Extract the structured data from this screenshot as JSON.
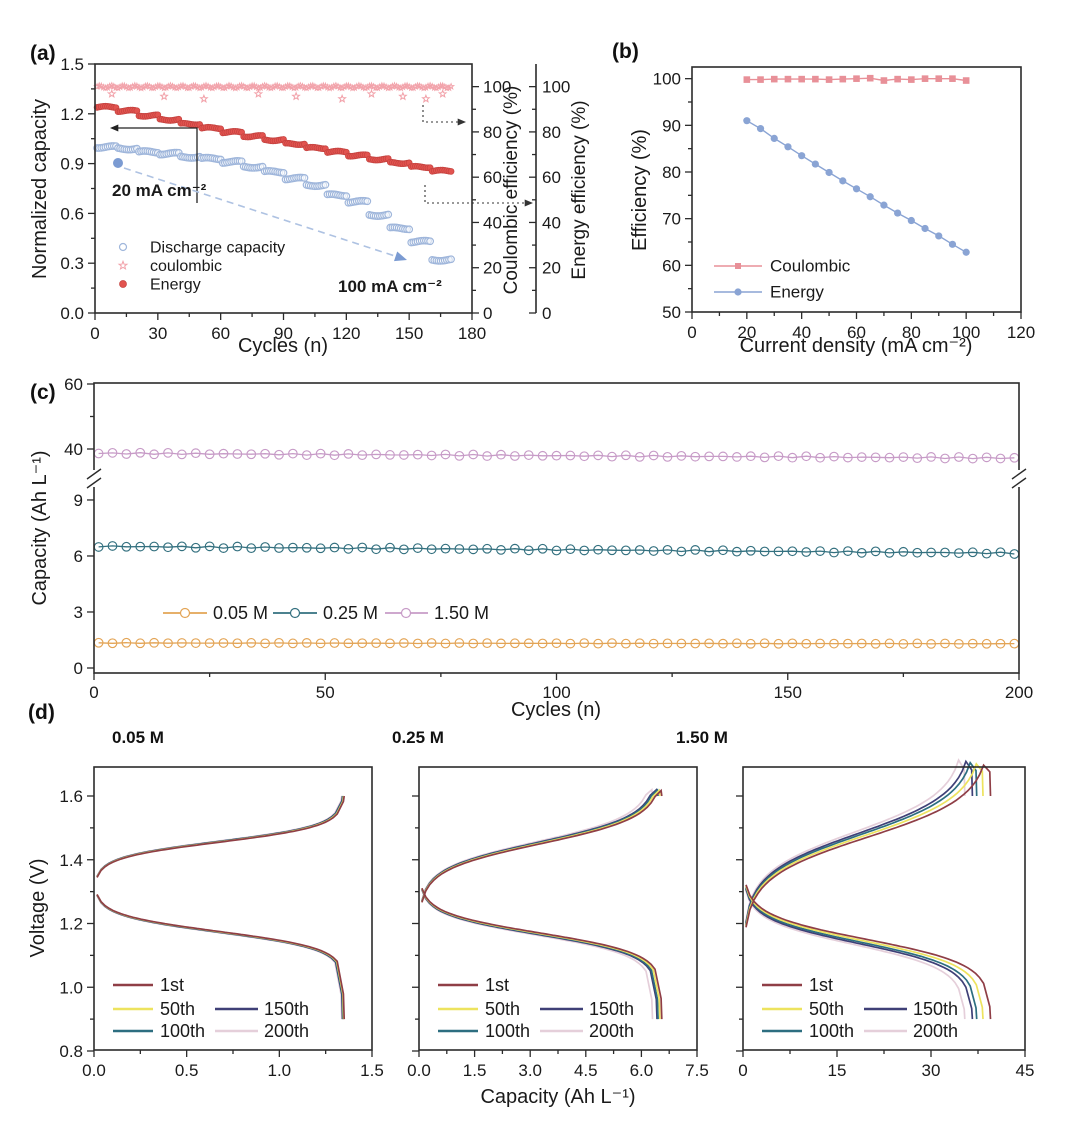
{
  "ui": {
    "panel_letters": {
      "a": "(a)",
      "b": "(b)",
      "c": "(c)",
      "d": "(d)"
    },
    "d_titles": [
      "0.05 M",
      "0.25 M",
      "1.50 M"
    ],
    "text_color": "#1a1a1a",
    "spine_color": "#2b2b2b"
  },
  "chart_data": [
    {
      "id": "a",
      "type": "scatter",
      "xlabel": "Cycles (n)",
      "ylabel": "Normalized capacity",
      "y2label": "Coulombic efficiency (%)",
      "y3label": "Energy efficiency (%)",
      "xlim": [
        0,
        180
      ],
      "ylim": [
        0,
        1.5
      ],
      "y2lim": [
        0,
        110
      ],
      "xticks": [
        "0",
        "30",
        "60",
        "90",
        "120",
        "150",
        "180"
      ],
      "yticks": [
        "0.0",
        "0.3",
        "0.6",
        "0.9",
        "1.2",
        "1.5"
      ],
      "y2ticks": [
        "0",
        "20",
        "40",
        "60",
        "80",
        "100"
      ],
      "legend": [
        {
          "label": "Discharge capacity",
          "marker": "open-circle",
          "color": "#9FB6DB"
        },
        {
          "label": "coulombic",
          "marker": "open-star",
          "color": "#F2A2AA"
        },
        {
          "label": "Energy",
          "marker": "filled-circle",
          "color": "#E2534F"
        }
      ],
      "annotations": {
        "start": "20 mA cm⁻²",
        "end": "100 mA cm⁻²"
      },
      "cycles_per_step": 10,
      "total_cycles": 170,
      "discharge_capacity_steps": [
        1.0,
        0.99,
        0.97,
        0.96,
        0.94,
        0.93,
        0.91,
        0.88,
        0.85,
        0.81,
        0.77,
        0.71,
        0.67,
        0.59,
        0.51,
        0.43,
        0.32
      ],
      "energy_efficiency_steps": [
        91.0,
        89.3,
        87.2,
        85.4,
        83.5,
        81.7,
        79.9,
        78.1,
        76.4,
        74.7,
        72.9,
        71.2,
        69.6,
        67.9,
        66.3,
        64.5,
        62.8
      ],
      "coulombic_efficiency_avg": 99.9,
      "coulombic_outlier_cycles": [
        8,
        33,
        52,
        78,
        96,
        118,
        132,
        147,
        158,
        166
      ],
      "colors": {
        "discharge": "#9FB6DB",
        "coulombic": "#F2A2AA",
        "energy": "#E2534F",
        "energy_edge": "#C4423F",
        "arrow_blue": "#7B9BD2",
        "dash_blue": "#AEC2E2"
      }
    },
    {
      "id": "b",
      "type": "line",
      "xlabel": "Current density (mA cm⁻²)",
      "ylabel": "Efficiency (%)",
      "xlim": [
        0,
        120
      ],
      "ylim": [
        50,
        102.5
      ],
      "xticks": [
        "0",
        "20",
        "40",
        "60",
        "80",
        "100",
        "120"
      ],
      "yticks": [
        "50",
        "60",
        "70",
        "80",
        "90",
        "100"
      ],
      "x": [
        20,
        25,
        30,
        35,
        40,
        45,
        50,
        55,
        60,
        65,
        70,
        75,
        80,
        85,
        90,
        95,
        100
      ],
      "series": [
        {
          "name": "Coulombic",
          "color": "#E89098",
          "marker": "square",
          "values": [
            99.8,
            99.8,
            99.9,
            99.9,
            99.9,
            99.9,
            99.8,
            99.9,
            100.0,
            100.1,
            99.6,
            99.9,
            99.8,
            100.0,
            100.0,
            100.0,
            99.6
          ]
        },
        {
          "name": "Energy",
          "color": "#8AA4D4",
          "marker": "circle",
          "values": [
            91.0,
            89.3,
            87.2,
            85.4,
            83.5,
            81.7,
            79.9,
            78.1,
            76.4,
            74.7,
            72.9,
            71.2,
            69.6,
            67.9,
            66.3,
            64.5,
            62.8
          ]
        }
      ]
    },
    {
      "id": "c",
      "type": "line-scatter",
      "broken_y_axis": true,
      "xlabel": "Cycles (n)",
      "ylabel": "Capacity (Ah L⁻¹)",
      "xlim": [
        0,
        200
      ],
      "xticks": [
        "0",
        "50",
        "100",
        "150",
        "200"
      ],
      "yticks_lower": [
        "0",
        "3",
        "6",
        "9"
      ],
      "yticks_upper": [
        "40",
        "60"
      ],
      "marker_every": 3,
      "series": [
        {
          "name": "0.05 M",
          "color": "#E3A455",
          "start": 1.34,
          "end": 1.3
        },
        {
          "name": "0.25 M",
          "color": "#33707F",
          "start": 6.52,
          "end": 6.15
        },
        {
          "name": "1.50 M",
          "color": "#C79BC7",
          "start": 38.7,
          "end": 37.2
        }
      ]
    },
    {
      "id": "d",
      "type": "line",
      "xlabel": "Capacity (Ah L⁻¹)",
      "ylabel": "Voltage (V)",
      "ylim": [
        0.8,
        1.695
      ],
      "yticks": [
        "0.8",
        "1.0",
        "1.2",
        "1.4",
        "1.6"
      ],
      "voltage_range": [
        0.9,
        1.6
      ],
      "cycle_labels": [
        "1st",
        "50th",
        "100th",
        "150th",
        "200th"
      ],
      "cycle_colors": [
        "#8F3E46",
        "#EDE35E",
        "#2D6E80",
        "#3F4077",
        "#E5CFDA"
      ],
      "subpanels": [
        {
          "title": "0.05 M",
          "xlim": [
            0,
            1.5
          ],
          "xticks": [
            "0.0",
            "0.5",
            "1.0",
            "1.5"
          ],
          "capacity_per_cycle": [
            1.35,
            1.347,
            1.344,
            1.341,
            1.337
          ],
          "charge_v_start": 1.365,
          "charge_v_mid": 1.455,
          "discharge_v_start": 1.27,
          "discharge_v_mid": 1.175
        },
        {
          "title": "0.25 M",
          "xlim": [
            0,
            7.5
          ],
          "xticks": [
            "0.0",
            "1.5",
            "3.0",
            "4.5",
            "6.0",
            "7.5"
          ],
          "capacity_per_cycle": [
            6.55,
            6.5,
            6.45,
            6.42,
            6.3
          ],
          "charge_v_start": 1.3,
          "charge_v_mid": 1.45,
          "discharge_v_start": 1.285,
          "discharge_v_mid": 1.17
        },
        {
          "title": "1.50 M",
          "xlim": [
            0,
            45
          ],
          "xticks": [
            "0",
            "15",
            "30",
            "45"
          ],
          "capacity_per_cycle": [
            39.5,
            38.3,
            37.3,
            36.6,
            35.4
          ],
          "charge_v_start": 1.24,
          "charge_v_mid": 1.47,
          "discharge_v_start": 1.29,
          "discharge_v_mid": 1.15
        }
      ]
    }
  ]
}
